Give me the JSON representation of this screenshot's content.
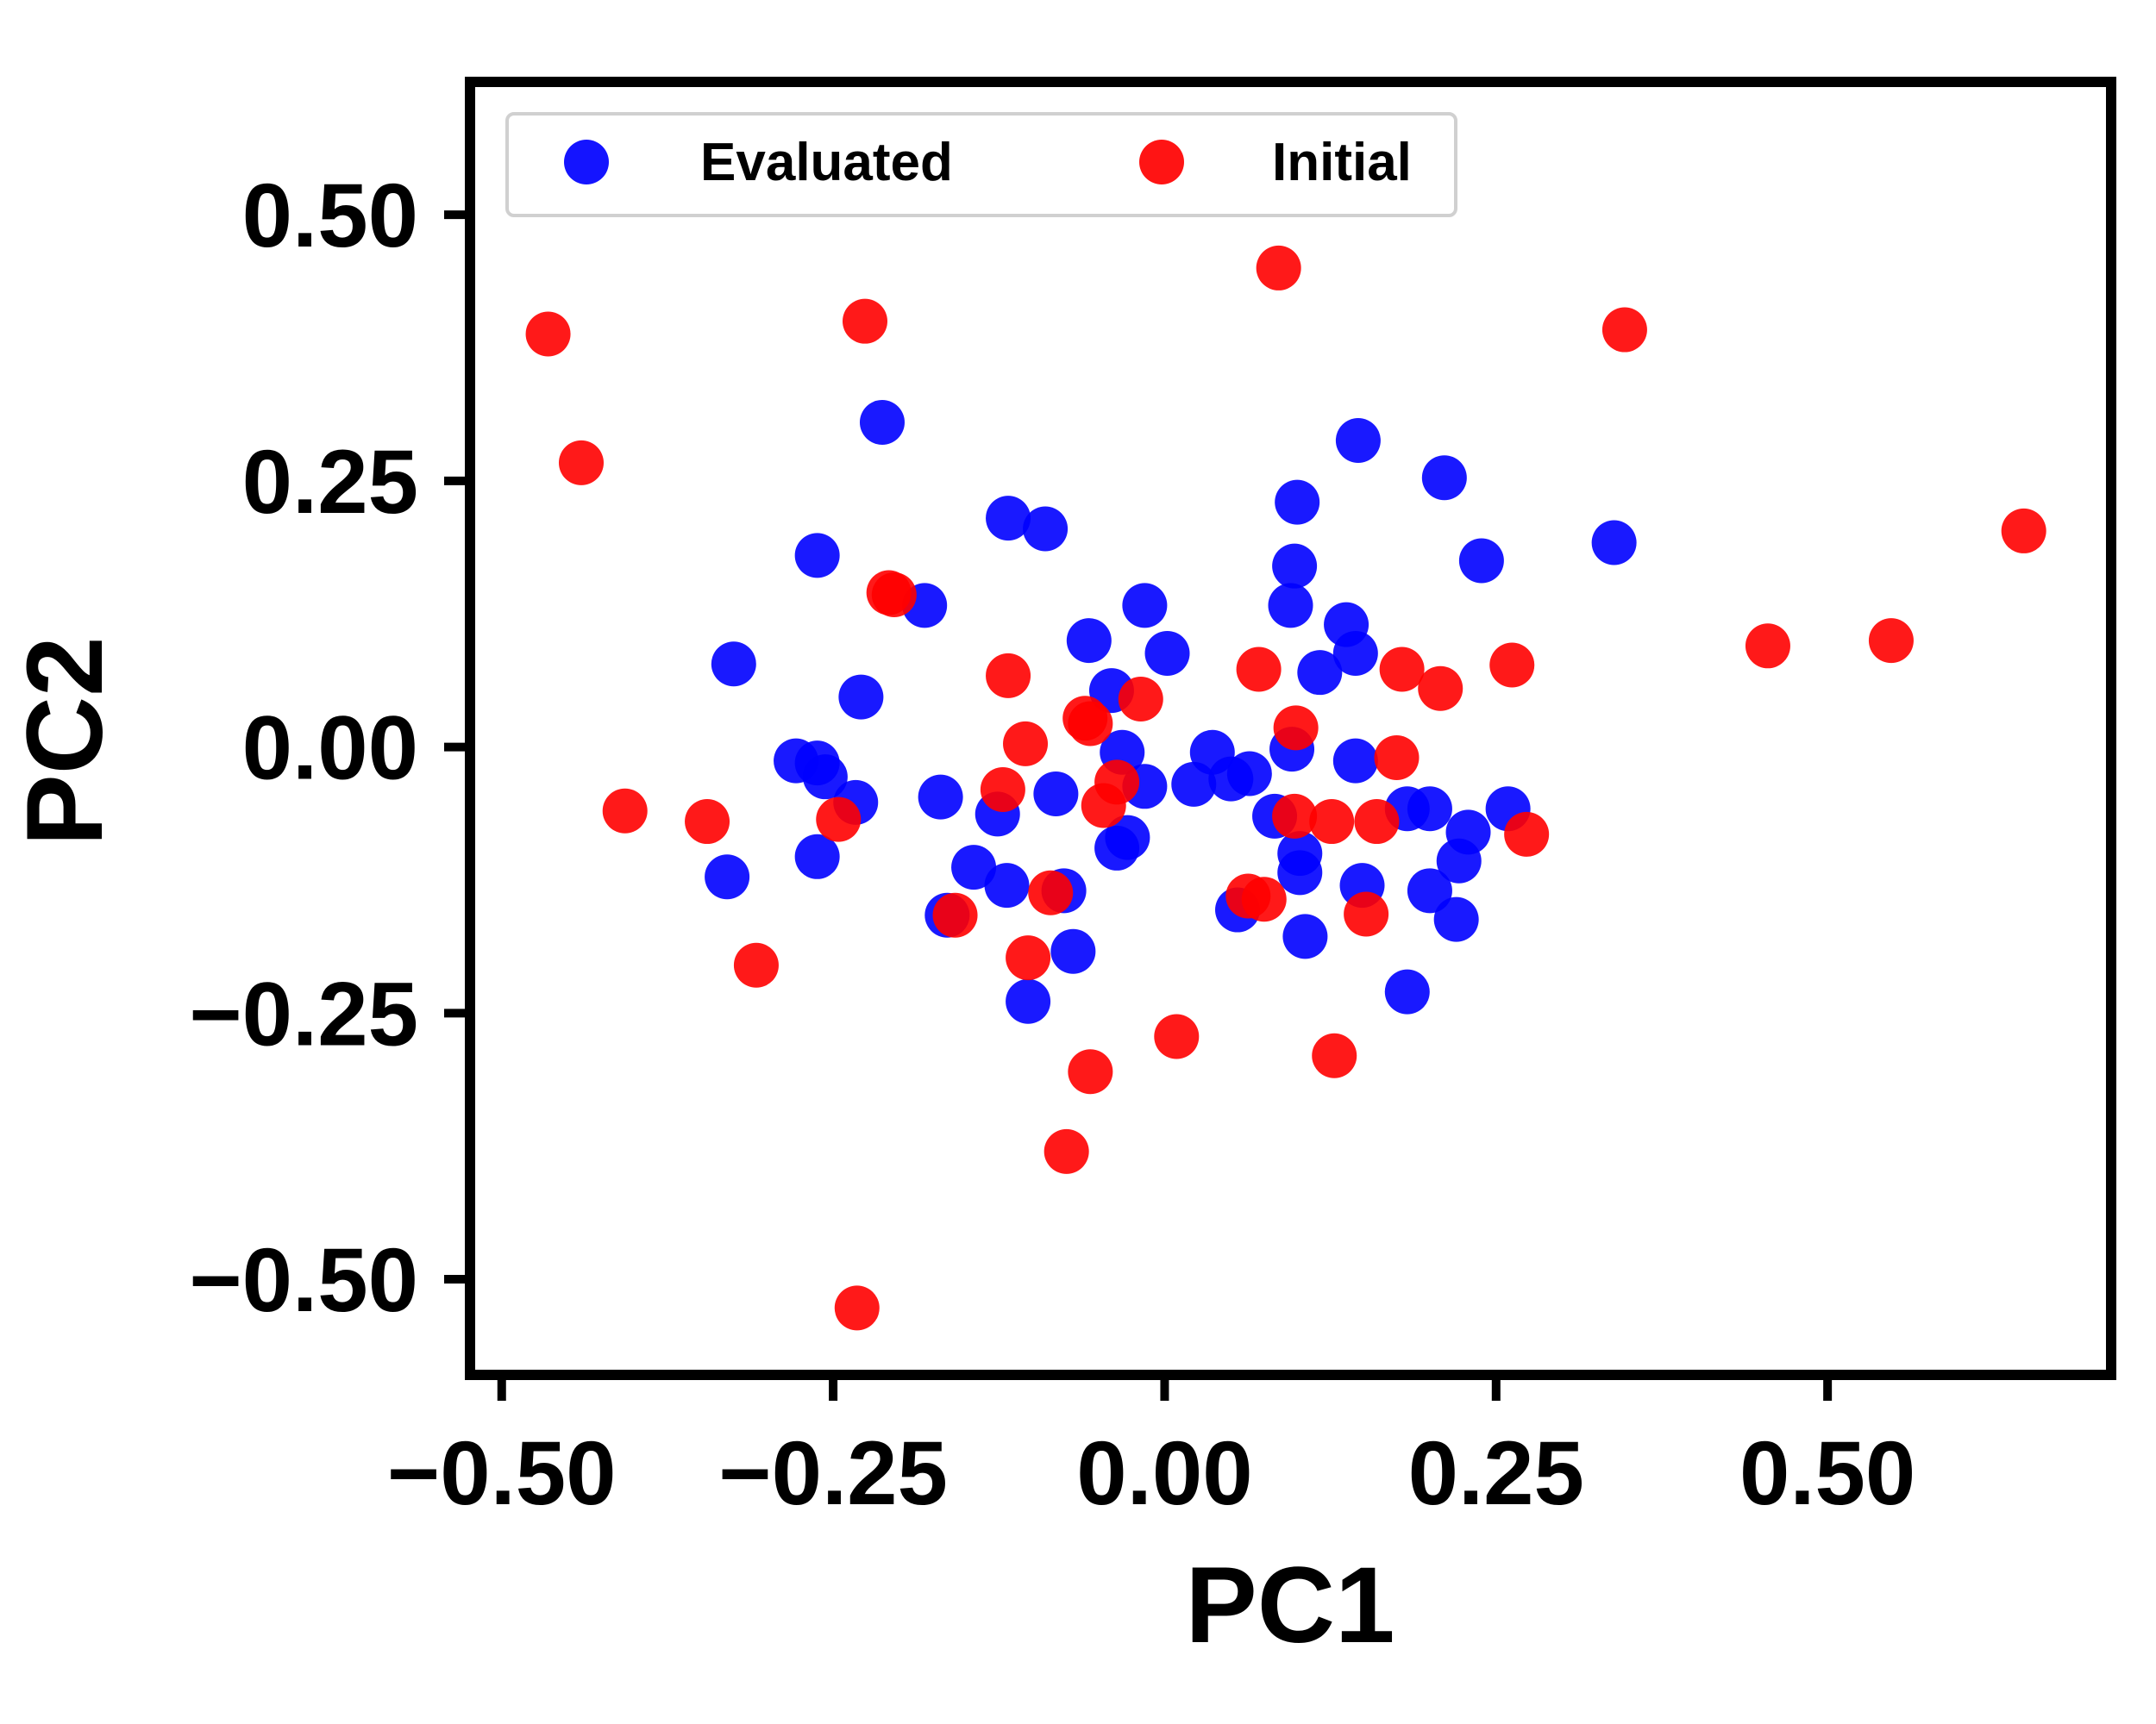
{
  "chart_data": {
    "type": "scatter",
    "title": "",
    "xlabel": "PC1",
    "ylabel": "PC2",
    "xlim": [
      -0.52,
      0.71
    ],
    "ylim": [
      -0.585,
      0.62
    ],
    "xticks": [
      -0.5,
      -0.25,
      0.0,
      0.25,
      0.5
    ],
    "yticks": [
      -0.5,
      -0.25,
      0.0,
      0.25,
      0.5
    ],
    "xtick_labels": [
      "−0.50",
      "−0.25",
      "0.00",
      "0.25",
      "0.50"
    ],
    "ytick_labels": [
      "−0.50",
      "−0.25",
      "0.00",
      "0.25",
      "0.50"
    ],
    "grid": false,
    "legend_position": "top-left",
    "legend_columns": 2,
    "series": [
      {
        "name": "Evaluated",
        "color": "#0000ff",
        "points": [
          [
            -0.213,
            0.305
          ],
          [
            -0.325,
            0.078
          ],
          [
            -0.262,
            0.18
          ],
          [
            -0.181,
            0.133
          ],
          [
            -0.229,
            0.047
          ],
          [
            -0.278,
            -0.013
          ],
          [
            -0.262,
            -0.015
          ],
          [
            -0.256,
            -0.028
          ],
          [
            -0.233,
            -0.052
          ],
          [
            -0.33,
            -0.122
          ],
          [
            -0.262,
            -0.103
          ],
          [
            -0.169,
            -0.047
          ],
          [
            -0.144,
            -0.113
          ],
          [
            -0.164,
            -0.158
          ],
          [
            -0.126,
            -0.063
          ],
          [
            -0.119,
            -0.13
          ],
          [
            -0.118,
            0.215
          ],
          [
            -0.09,
            0.205
          ],
          [
            -0.057,
            0.1
          ],
          [
            -0.082,
            -0.044
          ],
          [
            -0.076,
            -0.135
          ],
          [
            -0.069,
            -0.192
          ],
          [
            -0.103,
            -0.239
          ],
          [
            -0.015,
            0.133
          ],
          [
            0.002,
            0.088
          ],
          [
            -0.04,
            0.053
          ],
          [
            -0.032,
            -0.005
          ],
          [
            -0.015,
            -0.037
          ],
          [
            -0.028,
            -0.085
          ],
          [
            -0.036,
            -0.095
          ],
          [
            0.022,
            -0.035
          ],
          [
            0.036,
            -0.005
          ],
          [
            0.05,
            -0.03
          ],
          [
            0.064,
            -0.025
          ],
          [
            0.055,
            -0.153
          ],
          [
            0.1,
            0.23
          ],
          [
            0.098,
            0.17
          ],
          [
            0.095,
            0.133
          ],
          [
            0.096,
            -0.002
          ],
          [
            0.083,
            -0.065
          ],
          [
            0.102,
            -0.1
          ],
          [
            0.102,
            -0.118
          ],
          [
            0.106,
            -0.178
          ],
          [
            0.117,
            0.07
          ],
          [
            0.137,
            0.115
          ],
          [
            0.144,
            0.088
          ],
          [
            0.144,
            -0.013
          ],
          [
            0.149,
            -0.13
          ],
          [
            0.146,
            0.288
          ],
          [
            0.183,
            -0.058
          ],
          [
            0.2,
            -0.058
          ],
          [
            0.2,
            -0.135
          ],
          [
            0.222,
            -0.107
          ],
          [
            0.229,
            -0.08
          ],
          [
            0.22,
            -0.162
          ],
          [
            0.183,
            -0.23
          ],
          [
            0.211,
            0.253
          ],
          [
            0.239,
            0.175
          ],
          [
            0.259,
            -0.058
          ],
          [
            0.339,
            0.192
          ]
        ]
      },
      {
        "name": "Initial",
        "color": "#ff0000",
        "points": [
          [
            -0.465,
            0.388
          ],
          [
            -0.44,
            0.267
          ],
          [
            -0.407,
            -0.06
          ],
          [
            -0.345,
            -0.07
          ],
          [
            -0.308,
            -0.205
          ],
          [
            -0.226,
            0.4
          ],
          [
            -0.246,
            -0.068
          ],
          [
            -0.208,
            0.145
          ],
          [
            -0.204,
            0.143
          ],
          [
            -0.158,
            -0.158
          ],
          [
            -0.232,
            -0.527
          ],
          [
            -0.118,
            0.067
          ],
          [
            -0.122,
            -0.04
          ],
          [
            -0.105,
            0.003
          ],
          [
            -0.103,
            -0.198
          ],
          [
            -0.086,
            -0.137
          ],
          [
            -0.06,
            0.027
          ],
          [
            -0.056,
            0.022
          ],
          [
            -0.046,
            -0.055
          ],
          [
            -0.036,
            -0.033
          ],
          [
            -0.018,
            0.045
          ],
          [
            -0.056,
            -0.305
          ],
          [
            -0.074,
            -0.38
          ],
          [
            0.009,
            -0.272
          ],
          [
            0.071,
            0.073
          ],
          [
            0.086,
            0.45
          ],
          [
            0.099,
            0.018
          ],
          [
            0.098,
            -0.065
          ],
          [
            0.126,
            -0.07
          ],
          [
            0.063,
            -0.14
          ],
          [
            0.075,
            -0.143
          ],
          [
            0.16,
            -0.07
          ],
          [
            0.175,
            -0.01
          ],
          [
            0.179,
            0.073
          ],
          [
            0.208,
            0.055
          ],
          [
            0.262,
            0.077
          ],
          [
            0.273,
            -0.082
          ],
          [
            0.128,
            -0.29
          ],
          [
            0.152,
            -0.157
          ],
          [
            0.347,
            0.392
          ],
          [
            0.455,
            0.095
          ],
          [
            0.548,
            0.1
          ],
          [
            0.648,
            0.203
          ]
        ]
      }
    ]
  },
  "legend": {
    "items": [
      {
        "label": "Evaluated",
        "color": "#0000ff"
      },
      {
        "label": "Initial",
        "color": "#ff0000"
      }
    ]
  }
}
